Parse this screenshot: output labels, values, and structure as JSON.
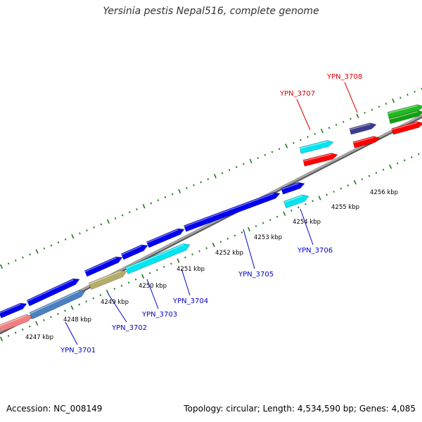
{
  "title": "Yersinia pestis Nepal516, complete genome",
  "footer": {
    "accession": "Accession: NC_008149",
    "stats": "Topology: circular; Length: 4,534,590 bp; Genes: 4,085"
  },
  "colors": {
    "backbone": "#8c8c8c",
    "tick": "#1e7b1e",
    "gene_label": "#0000cc",
    "highlight_label": "#dd0000",
    "blue": "#0000ee",
    "cyan": "#00e5f0",
    "red": "#ff0000",
    "green": "#22bb22",
    "navy": "#3b3b8e",
    "steelblue": "#4a80c0",
    "olive": "#b5ac6a",
    "pink": "#f08080"
  },
  "scale": {
    "unit": "kbp",
    "labels": [
      "4247 kbp",
      "4248 kbp",
      "4249 kbp",
      "4250 kbp",
      "4251 kbp",
      "4252 kbp",
      "4253 kbp",
      "4254 kbp",
      "4255 kbp",
      "4256 kbp"
    ]
  },
  "gene_labels": [
    {
      "text": "YPN_3701",
      "color": "gene_label"
    },
    {
      "text": "YPN_3702",
      "color": "gene_label"
    },
    {
      "text": "YPN_3703",
      "color": "gene_label"
    },
    {
      "text": "YPN_3704",
      "color": "gene_label"
    },
    {
      "text": "YPN_3705",
      "color": "gene_label"
    },
    {
      "text": "YPN_3706",
      "color": "gene_label"
    },
    {
      "text": "YPN_3707",
      "color": "highlight_label"
    },
    {
      "text": "YPN_3708",
      "color": "highlight_label"
    }
  ]
}
